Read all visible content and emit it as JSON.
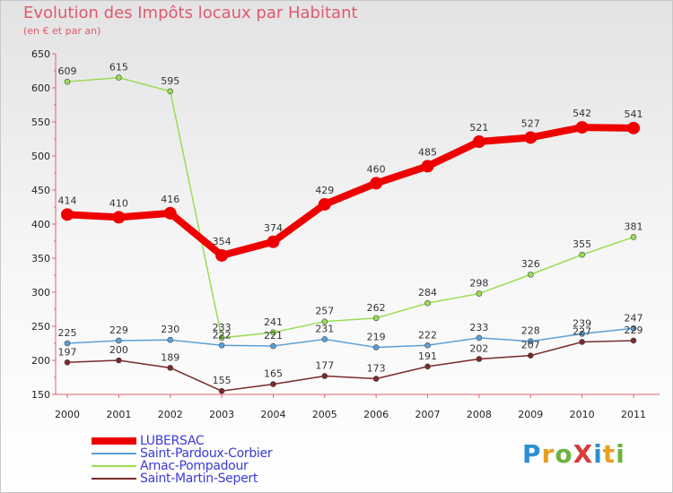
{
  "title": "Evolution des Impôts locaux par Habitant",
  "subtitle": "(en € et par an)",
  "logo": {
    "text": "ProXiti",
    "colors": [
      "#2a8fd4",
      "#e8a020",
      "#6cb33f",
      "#d93a3a",
      "#2a8fd4",
      "#e8a020",
      "#6cb33f"
    ]
  },
  "chart_data": {
    "type": "line",
    "title": "Evolution des Impôts locaux par Habitant",
    "subtitle": "(en € et par an)",
    "x": [
      "2000",
      "2001",
      "2002",
      "2003",
      "2004",
      "2005",
      "2006",
      "2007",
      "2008",
      "2009",
      "2010",
      "2011"
    ],
    "ylim": [
      150,
      650
    ],
    "yticks": [
      150,
      200,
      250,
      300,
      350,
      400,
      450,
      500,
      550,
      600,
      650
    ],
    "grid": false,
    "legend_position": "bottom-left",
    "series": [
      {
        "name": "LUBERSAC",
        "color": "#ee0000",
        "values": [
          414,
          410,
          416,
          354,
          374,
          429,
          460,
          485,
          521,
          527,
          542,
          541
        ]
      },
      {
        "name": "Saint-Pardoux-Corbier",
        "color": "#5aa0d8",
        "values": [
          225,
          229,
          230,
          222,
          221,
          231,
          219,
          222,
          233,
          228,
          239,
          247
        ]
      },
      {
        "name": "Arnac-Pompadour",
        "color": "#99dd55",
        "values": [
          609,
          615,
          595,
          233,
          241,
          257,
          262,
          284,
          298,
          326,
          355,
          381
        ]
      },
      {
        "name": "Saint-Martin-Sepert",
        "color": "#7a2a2a",
        "values": [
          197,
          200,
          189,
          155,
          165,
          177,
          173,
          191,
          202,
          207,
          227,
          229
        ]
      }
    ]
  }
}
